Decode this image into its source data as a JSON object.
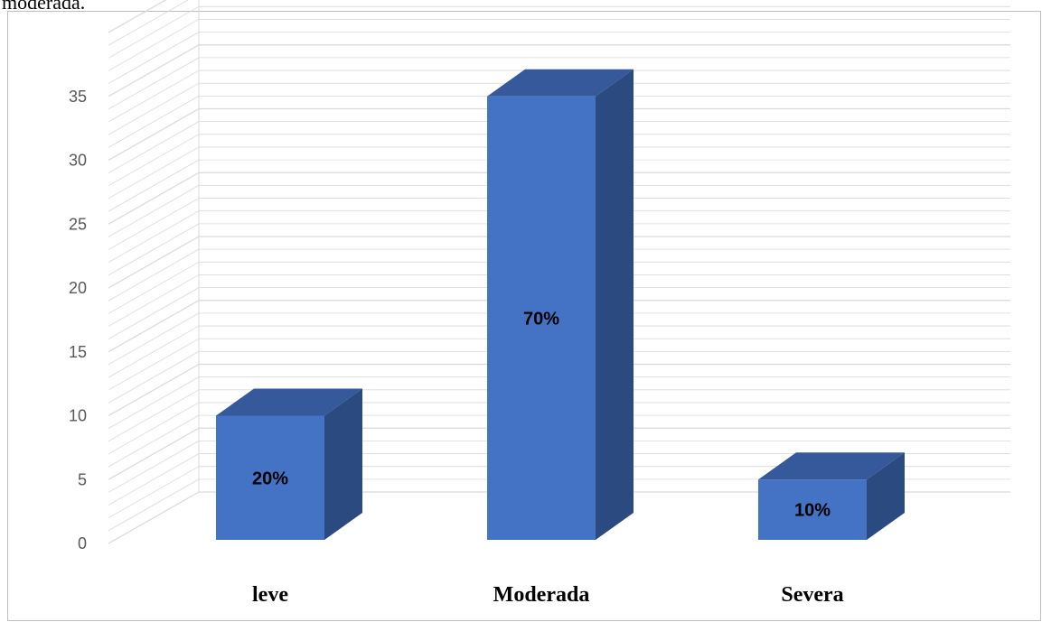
{
  "caption_fragment": "moderada.",
  "chart_data": {
    "type": "bar",
    "categories": [
      "leve",
      "Moderada",
      "Severa"
    ],
    "values": [
      10,
      35,
      5
    ],
    "data_labels": [
      "20%",
      "70%",
      "10%"
    ],
    "ylim": [
      0,
      35
    ],
    "yticks": [
      0,
      5,
      10,
      15,
      20,
      25,
      30,
      35
    ],
    "grid": true,
    "style": "3d-column",
    "colors": {
      "front": "#4472C4",
      "side": "#2B4A80",
      "top": "#35599A",
      "grid": "#D9D9D9",
      "frame": "#BFBFBF"
    }
  }
}
